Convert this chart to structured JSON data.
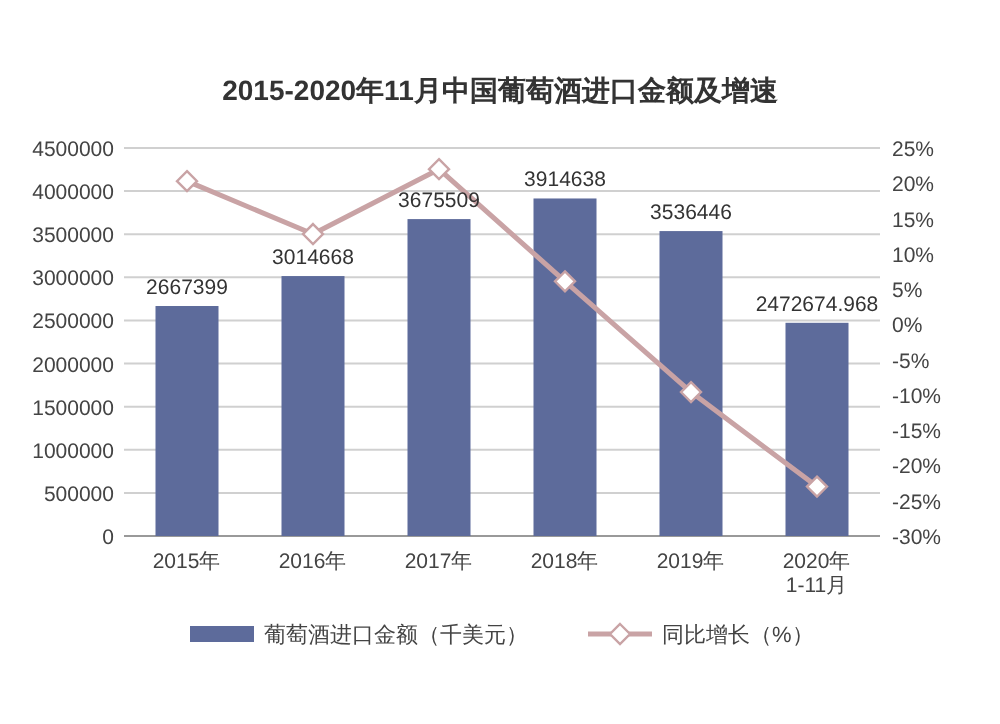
{
  "chart_data": {
    "type": "bar",
    "title": "2015-2020年11月中国葡萄酒进口金额及增速",
    "categories": [
      "2015年",
      "2016年",
      "2017年",
      "2018年",
      "2019年",
      "2020年\n1-11月"
    ],
    "series": [
      {
        "name": "葡萄酒进口金额（千美元）",
        "color": "#5d6b9b",
        "values": [
          2667399,
          3014668,
          3675509,
          3914638,
          3536446,
          2472674.968
        ],
        "value_labels": [
          "2667399",
          "3014668",
          "3675509",
          "3914638",
          "3536446",
          "2472674.968"
        ]
      },
      {
        "name": "同比增长（%）",
        "type": "line",
        "axis": "y2",
        "color": "#c9a3a5",
        "marker": "diamond",
        "values": [
          20.3,
          12.8,
          22.0,
          6.1,
          -9.6,
          -23.0
        ]
      }
    ],
    "ylim": [
      0,
      4500000
    ],
    "yticks": [
      0,
      500000,
      1000000,
      1500000,
      2000000,
      2500000,
      3000000,
      3500000,
      4000000,
      4500000
    ],
    "y2lim": [
      -30,
      25
    ],
    "y2ticks": [
      {
        "value": -30,
        "label": "-30%"
      },
      {
        "value": -25,
        "label": "-25%"
      },
      {
        "value": -20,
        "label": "-20%"
      },
      {
        "value": -15,
        "label": "-15%"
      },
      {
        "value": -10,
        "label": "-10%"
      },
      {
        "value": -5,
        "label": "-5%"
      },
      {
        "value": 0,
        "label": "0%"
      },
      {
        "value": 5,
        "label": "5%"
      },
      {
        "value": 10,
        "label": "10%"
      },
      {
        "value": 15,
        "label": "15%"
      },
      {
        "value": 20,
        "label": "20%"
      },
      {
        "value": 25,
        "label": "25%"
      }
    ],
    "grid": "y",
    "legend": "bottom"
  }
}
